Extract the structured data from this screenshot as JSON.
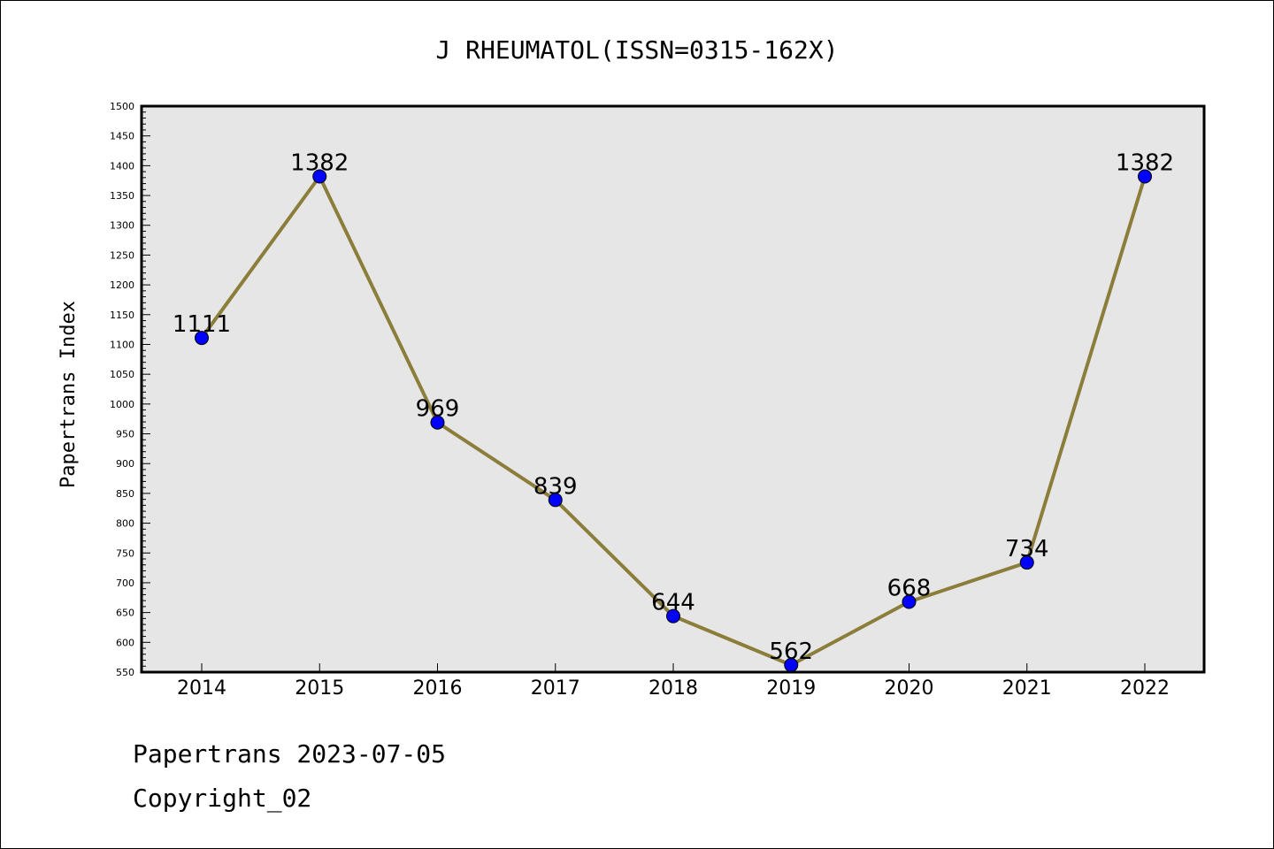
{
  "chart_data": {
    "type": "line",
    "title": "J RHEUMATOL(ISSN=0315-162X)",
    "xlabel": "",
    "ylabel": "Papertrans Index",
    "categories": [
      "2014",
      "2015",
      "2016",
      "2017",
      "2018",
      "2019",
      "2020",
      "2021",
      "2022"
    ],
    "series": [
      {
        "values": [
          1111,
          1382,
          969,
          839,
          644,
          562,
          668,
          734,
          1382
        ]
      }
    ],
    "data_labels": [
      "1111",
      "1382",
      "969",
      "839",
      "644",
      "562",
      "668",
      "734",
      "1382"
    ],
    "ylim": [
      550,
      1500
    ],
    "yticks": [
      "550",
      "600",
      "650",
      "700",
      "750",
      "800",
      "850",
      "900",
      "950",
      "1000",
      "1050",
      "1100",
      "1150",
      "1200",
      "1250",
      "1300",
      "1350",
      "1400",
      "1450",
      "1500"
    ],
    "grid": false,
    "legend": "none",
    "colors": {
      "line": "#8b7d3a",
      "marker": "#0000ff",
      "plot_background": "#e6e6e6"
    }
  },
  "footer": {
    "date_text": "Papertrans 2023-07-05",
    "copyright_text": "Copyright_02"
  }
}
